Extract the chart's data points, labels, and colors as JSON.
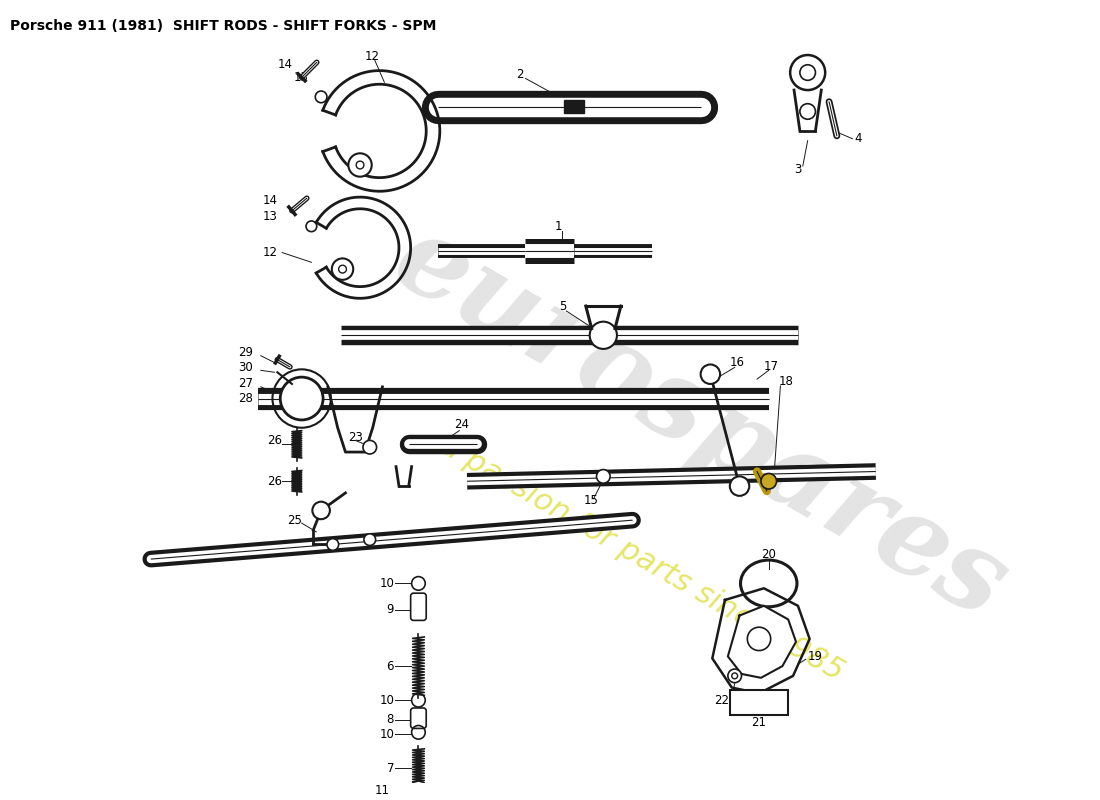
{
  "title": "Porsche 911 (1981)  SHIFT RODS - SHIFT FORKS - SPM",
  "background_color": "#ffffff",
  "watermark_color": "#d8d8d8",
  "watermark_yellow": "#d4d400",
  "line_color": "#1a1a1a",
  "label_fontsize": 8.5,
  "title_fontsize": 10,
  "figsize": [
    11,
    8
  ],
  "dpi": 100,
  "xlim": [
    0,
    1100
  ],
  "ylim": [
    0,
    800
  ]
}
